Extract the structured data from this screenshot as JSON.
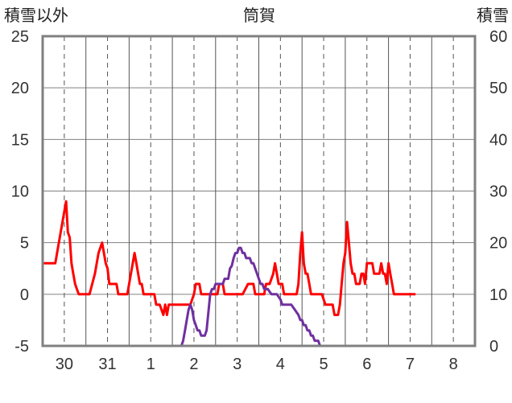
{
  "chart_data": {
    "type": "line",
    "title": "筒賀",
    "ylabel_left": "積雪以外",
    "ylabel_right": "積雪",
    "ylim_left": [
      -5,
      25
    ],
    "yticks_left": [
      -5,
      0,
      5,
      10,
      15,
      20,
      25
    ],
    "ylim_right": [
      0,
      60
    ],
    "yticks_right": [
      0,
      10,
      20,
      30,
      40,
      50,
      60
    ],
    "x_range": [
      0,
      240
    ],
    "x_unit": "hours from 29th 12:00",
    "day_ticks": [
      {
        "x": 12,
        "label": "30"
      },
      {
        "x": 36,
        "label": "31"
      },
      {
        "x": 60,
        "label": "1"
      },
      {
        "x": 84,
        "label": "2"
      },
      {
        "x": 108,
        "label": "3"
      },
      {
        "x": 132,
        "label": "4"
      },
      {
        "x": 156,
        "label": "5"
      },
      {
        "x": 180,
        "label": "6"
      },
      {
        "x": 204,
        "label": "7"
      },
      {
        "x": 228,
        "label": "8"
      }
    ],
    "grid": "solid vertical lines at day boundaries, dashed vertical lines at noon",
    "series": [
      {
        "name": "",
        "axis": "left",
        "color": "#ff0000",
        "points": [
          [
            0,
            3
          ],
          [
            7,
            3
          ],
          [
            9,
            5
          ],
          [
            11,
            7
          ],
          [
            13,
            9
          ],
          [
            14,
            6
          ],
          [
            15,
            5.5
          ],
          [
            16,
            3
          ],
          [
            17,
            2
          ],
          [
            18,
            1
          ],
          [
            19,
            0.5
          ],
          [
            20,
            0
          ],
          [
            26,
            0
          ],
          [
            29,
            2
          ],
          [
            31,
            4
          ],
          [
            33,
            5
          ],
          [
            34,
            4
          ],
          [
            35,
            3
          ],
          [
            36,
            2.5
          ],
          [
            37,
            1
          ],
          [
            39,
            1
          ],
          [
            41,
            1
          ],
          [
            42,
            0
          ],
          [
            47,
            0
          ],
          [
            49,
            2
          ],
          [
            50,
            3
          ],
          [
            51,
            4
          ],
          [
            52,
            3
          ],
          [
            53,
            2
          ],
          [
            54,
            1
          ],
          [
            55,
            1
          ],
          [
            56,
            0
          ],
          [
            62,
            0
          ],
          [
            63,
            -1
          ],
          [
            65,
            -1
          ],
          [
            67,
            -2
          ],
          [
            68,
            -1
          ],
          [
            69,
            -2
          ],
          [
            70,
            -1
          ],
          [
            82,
            -1
          ],
          [
            84,
            0
          ],
          [
            85,
            1
          ],
          [
            87,
            1
          ],
          [
            88,
            0
          ],
          [
            95,
            0
          ],
          [
            97,
            0
          ],
          [
            98,
            1
          ],
          [
            100,
            1
          ],
          [
            101,
            0
          ],
          [
            111,
            0
          ],
          [
            114,
            1
          ],
          [
            117,
            1
          ],
          [
            118,
            0
          ],
          [
            123,
            0
          ],
          [
            124,
            1
          ],
          [
            126,
            1
          ],
          [
            128,
            2
          ],
          [
            129,
            3
          ],
          [
            130,
            2
          ],
          [
            131,
            1
          ],
          [
            133,
            1
          ],
          [
            134,
            0
          ],
          [
            141,
            0
          ],
          [
            142,
            1
          ],
          [
            143,
            4
          ],
          [
            144,
            6
          ],
          [
            145,
            3
          ],
          [
            146,
            2
          ],
          [
            147,
            2
          ],
          [
            148,
            1
          ],
          [
            149,
            0
          ],
          [
            155,
            0
          ],
          [
            157,
            -1
          ],
          [
            159,
            -1
          ],
          [
            161,
            -1
          ],
          [
            162,
            -2
          ],
          [
            164,
            -2
          ],
          [
            165,
            -1
          ],
          [
            166,
            1
          ],
          [
            167,
            3
          ],
          [
            168,
            4
          ],
          [
            169,
            7
          ],
          [
            170,
            5
          ],
          [
            171,
            3
          ],
          [
            172,
            2
          ],
          [
            173,
            2
          ],
          [
            174,
            1
          ],
          [
            175,
            1
          ],
          [
            176,
            1
          ],
          [
            177,
            2
          ],
          [
            178,
            2
          ],
          [
            179,
            1
          ],
          [
            180,
            3
          ],
          [
            183,
            3
          ],
          [
            184,
            2
          ],
          [
            187,
            2
          ],
          [
            188,
            3
          ],
          [
            189,
            2
          ],
          [
            190,
            2
          ],
          [
            191,
            1
          ],
          [
            192,
            3
          ],
          [
            193,
            2
          ],
          [
            194,
            1
          ],
          [
            195,
            0
          ],
          [
            207,
            0
          ]
        ]
      },
      {
        "name": "",
        "axis": "right",
        "color": "#7030a0",
        "points": [
          [
            0,
            0
          ],
          [
            77,
            0
          ],
          [
            78,
            1
          ],
          [
            79,
            3
          ],
          [
            80,
            5
          ],
          [
            81,
            7
          ],
          [
            82,
            8
          ],
          [
            83,
            7
          ],
          [
            84,
            5
          ],
          [
            85,
            4
          ],
          [
            86,
            3
          ],
          [
            87,
            3
          ],
          [
            88,
            2
          ],
          [
            90,
            2
          ],
          [
            91,
            3
          ],
          [
            93,
            10
          ],
          [
            94,
            11
          ],
          [
            95,
            11
          ],
          [
            96,
            12
          ],
          [
            98,
            12
          ],
          [
            100,
            12
          ],
          [
            101,
            13
          ],
          [
            103,
            13
          ],
          [
            104,
            15
          ],
          [
            105,
            15.5
          ],
          [
            106,
            17
          ],
          [
            107,
            18
          ],
          [
            108,
            18
          ],
          [
            109,
            19
          ],
          [
            110,
            19
          ],
          [
            111,
            18
          ],
          [
            112,
            18
          ],
          [
            113,
            17
          ],
          [
            114,
            17
          ],
          [
            115,
            17
          ],
          [
            116,
            16
          ],
          [
            117,
            16
          ],
          [
            118,
            15
          ],
          [
            119,
            14
          ],
          [
            120,
            13
          ],
          [
            121,
            12
          ],
          [
            122,
            12
          ],
          [
            123,
            11
          ],
          [
            124,
            11
          ],
          [
            125,
            11
          ],
          [
            126,
            10.5
          ],
          [
            127,
            10
          ],
          [
            130,
            10
          ],
          [
            132,
            9
          ],
          [
            133,
            8
          ],
          [
            134,
            8
          ],
          [
            138,
            8
          ],
          [
            140,
            7
          ],
          [
            142,
            6
          ],
          [
            143,
            5
          ],
          [
            144,
            5
          ],
          [
            145,
            4
          ],
          [
            146,
            4
          ],
          [
            147,
            3
          ],
          [
            148,
            3
          ],
          [
            149,
            2
          ],
          [
            150,
            2
          ],
          [
            151,
            1
          ],
          [
            152,
            1
          ],
          [
            153,
            1
          ],
          [
            154,
            0
          ],
          [
            240,
            0
          ]
        ]
      }
    ]
  }
}
